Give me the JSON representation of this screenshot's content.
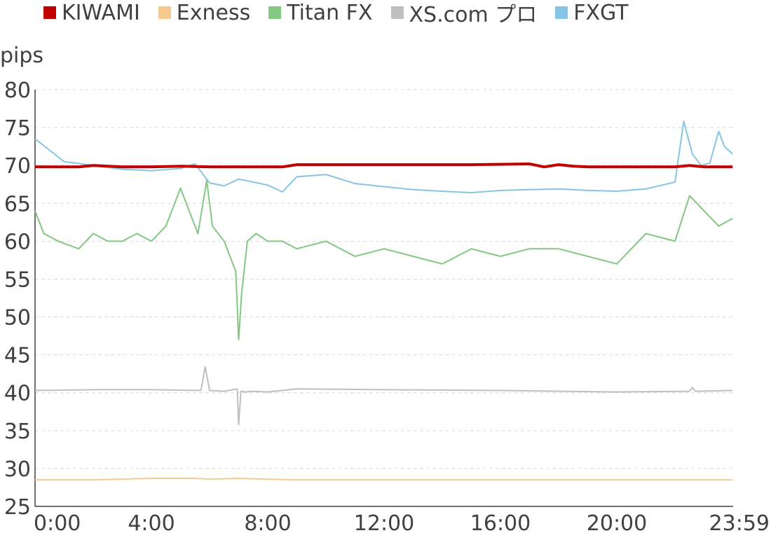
{
  "chart_data": {
    "type": "line",
    "title": "",
    "xlabel": "",
    "ylabel": "pips",
    "ylim": [
      25,
      80
    ],
    "yticks": [
      25,
      30,
      35,
      40,
      45,
      50,
      55,
      60,
      65,
      70,
      75,
      80
    ],
    "xlim": [
      0,
      24
    ],
    "xticks": [
      {
        "hour": 0,
        "label": "0:00"
      },
      {
        "hour": 4,
        "label": "4:00"
      },
      {
        "hour": 8,
        "label": "8:00"
      },
      {
        "hour": 12,
        "label": "12:00"
      },
      {
        "hour": 16,
        "label": "16:00"
      },
      {
        "hour": 20,
        "label": "20:00"
      },
      {
        "hour": 23.98,
        "label": "23:59"
      }
    ],
    "grid": "horizontal-dashed",
    "legend_position": "top",
    "series": [
      {
        "name": "KIWAMI",
        "color": "#c00000",
        "x": [
          0,
          1.5,
          2,
          3,
          4,
          5,
          6,
          7,
          8,
          8.5,
          9,
          12,
          15,
          17,
          17.5,
          18,
          18.5,
          19,
          20,
          22,
          22.5,
          23,
          23.98
        ],
        "values": [
          69.8,
          69.8,
          70.0,
          69.8,
          69.8,
          69.9,
          69.8,
          69.8,
          69.8,
          69.8,
          70.1,
          70.1,
          70.1,
          70.2,
          69.8,
          70.1,
          69.9,
          69.8,
          69.8,
          69.8,
          70.0,
          69.8,
          69.8
        ]
      },
      {
        "name": "Exness",
        "color": "#f7c98c",
        "x": [
          0,
          2,
          4,
          5.5,
          6,
          7,
          8,
          9,
          12,
          16,
          20,
          23.98
        ],
        "values": [
          28.5,
          28.5,
          28.7,
          28.7,
          28.6,
          28.7,
          28.6,
          28.5,
          28.5,
          28.5,
          28.5,
          28.5
        ]
      },
      {
        "name": "Titan FX",
        "color": "#82c882",
        "x": [
          0,
          0.3,
          0.8,
          1.5,
          2,
          2.5,
          3,
          3.5,
          4,
          4.5,
          5,
          5.3,
          5.6,
          5.9,
          6.1,
          6.5,
          6.9,
          7.0,
          7.1,
          7.3,
          7.6,
          8,
          8.5,
          9,
          10,
          11,
          12,
          13,
          14,
          15,
          16,
          17,
          18,
          19,
          20,
          20.5,
          21,
          22,
          22.5,
          23,
          23.5,
          23.98
        ],
        "values": [
          64,
          61,
          60,
          59,
          61,
          60,
          60,
          61,
          60,
          62,
          67,
          64,
          61,
          68,
          62,
          60,
          56,
          47,
          53,
          60,
          61,
          60,
          60,
          59,
          60,
          58,
          59,
          58,
          57,
          59,
          58,
          59,
          59,
          58,
          57,
          59,
          61,
          60,
          66,
          64,
          62,
          63
        ]
      },
      {
        "name": "XS.com プロ",
        "color": "#bfbfbf",
        "x": [
          0,
          2,
          4,
          5.7,
          5.85,
          6.0,
          6.5,
          6.95,
          7.0,
          7.08,
          7.2,
          7.5,
          8,
          9,
          12,
          16,
          20,
          22.5,
          22.6,
          22.7,
          23.98
        ],
        "values": [
          40.3,
          40.4,
          40.4,
          40.3,
          43.4,
          40.3,
          40.2,
          40.5,
          35.8,
          40.2,
          40.1,
          40.2,
          40.1,
          40.5,
          40.4,
          40.3,
          40.1,
          40.2,
          40.7,
          40.2,
          40.3
        ]
      },
      {
        "name": "FXGT",
        "color": "#86c5e3",
        "x": [
          0,
          0.5,
          1,
          2,
          3,
          4,
          5,
          5.5,
          6,
          6.5,
          7,
          8,
          8.5,
          9,
          10,
          11,
          12,
          13,
          14,
          15,
          16,
          17,
          18,
          19,
          20,
          21,
          22,
          22.3,
          22.6,
          22.9,
          23.2,
          23.5,
          23.7,
          23.98
        ],
        "values": [
          73.5,
          72,
          70.5,
          70,
          69.5,
          69.3,
          69.6,
          70.2,
          67.7,
          67.3,
          68.2,
          67.4,
          66.5,
          68.5,
          68.8,
          67.6,
          67.2,
          66.8,
          66.6,
          66.4,
          66.7,
          66.8,
          66.9,
          66.7,
          66.6,
          66.9,
          67.8,
          75.8,
          71.5,
          70,
          70.3,
          74.5,
          72.5,
          71.5
        ]
      }
    ]
  }
}
